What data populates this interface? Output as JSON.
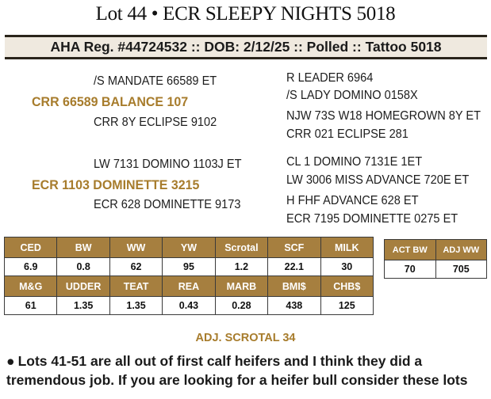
{
  "title": "Lot 44 • ECR SLEEPY NIGHTS 5018",
  "reg_line": "AHA Reg. #44724532 :: DOB: 2/12/25 :: Polled :: Tattoo 5018",
  "pedigree": {
    "sire": "CRR 66589 BALANCE 107",
    "sire_sire": "/S MANDATE 66589 ET",
    "sire_dam": "CRR 8Y ECLIPSE 9102",
    "sss": "R LEADER 6964",
    "ssd": "/S LADY DOMINO 0158X",
    "sds": "NJW 73S W18 HOMEGROWN 8Y ET",
    "sdd": "CRR 021 ECLIPSE 281",
    "dam": "ECR 1103 DOMINETTE 3215",
    "dam_sire": "LW 7131 DOMINO 1103J ET",
    "dam_dam": "ECR 628 DOMINETTE 9173",
    "dss": "CL 1 DOMINO 7131E 1ET",
    "dsd": "LW 3006 MISS ADVANCE 720E ET",
    "dds": "H FHF ADVANCE 628 ET",
    "ddd": "ECR 7195 DOMINETTE 0275 ET"
  },
  "epd_row1": {
    "headers": [
      "CED",
      "BW",
      "WW",
      "YW",
      "Scrotal",
      "SCF",
      "MILK"
    ],
    "values": [
      "6.9",
      "0.8",
      "62",
      "95",
      "1.2",
      "22.1",
      "30"
    ]
  },
  "epd_row2": {
    "headers": [
      "M&G",
      "UDDER",
      "TEAT",
      "REA",
      "MARB",
      "BMI$",
      "CHB$"
    ],
    "values": [
      "61",
      "1.35",
      "1.35",
      "0.43",
      "0.28",
      "438",
      "125"
    ]
  },
  "actual": {
    "headers": [
      "ACT BW",
      "ADJ WW"
    ],
    "values": [
      "70",
      "705"
    ]
  },
  "adj_scrotal": "ADJ. SCROTAL 34",
  "note": "Lots 41-51 are all out of first calf heifers and I think they did a tremendous job. If you are looking for a heifer bull consider these lots",
  "colors": {
    "gold": "#a67f3f",
    "gold_text": "#a77c2c",
    "band": "#efe9df"
  }
}
